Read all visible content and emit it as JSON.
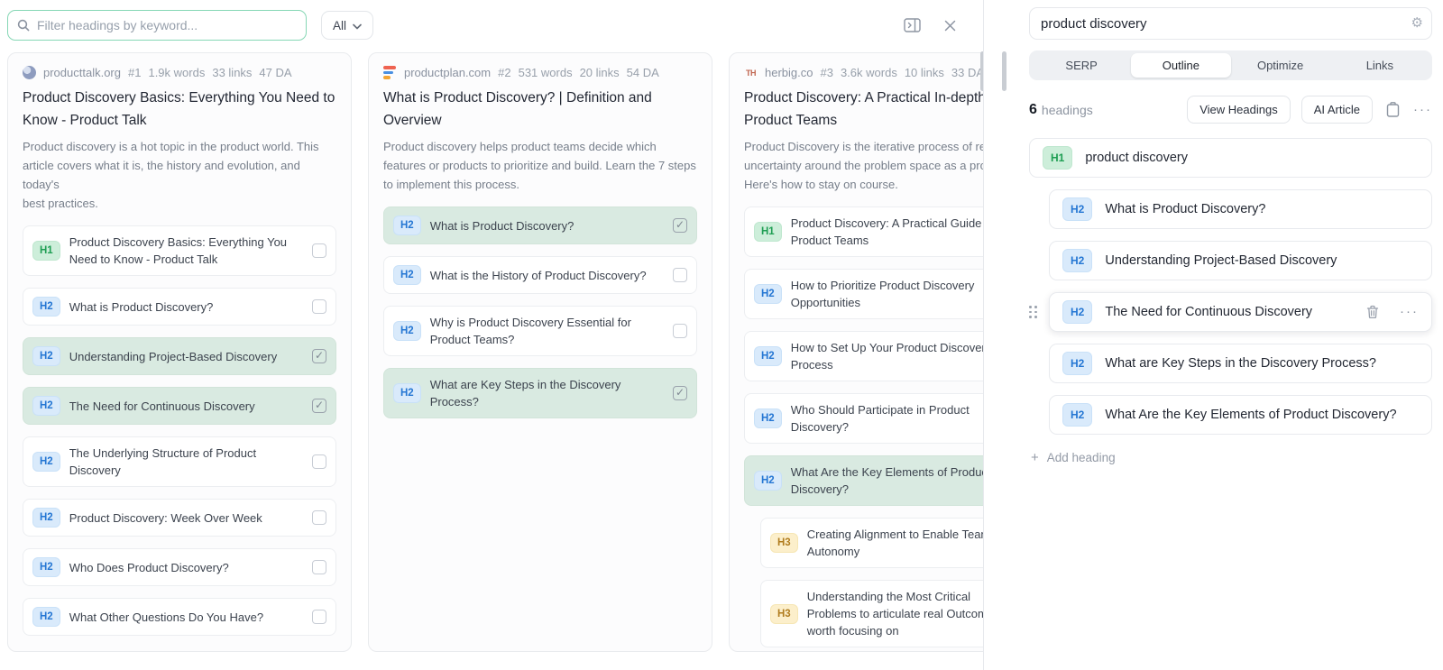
{
  "toolbar": {
    "filter_placeholder": "Filter headings by keyword...",
    "filter_dropdown": "All"
  },
  "columns": [
    {
      "favicon": "globe",
      "favicon_text": "",
      "domain": "producttalk.org",
      "rank": "#1",
      "words": "1.9k words",
      "links": "33 links",
      "da": "47 DA",
      "title": "Product Discovery Basics: Everything You Need to\nKnow - Product Talk",
      "description": "Product discovery is a hot topic in the product world. This\narticle covers what it is, the history and evolution, and today's\nbest practices.",
      "has_partial_item": false,
      "headings": [
        {
          "level": "H1",
          "text": "Product Discovery Basics: Everything You\nNeed to Know - Product Talk",
          "selected": false
        },
        {
          "level": "H2",
          "text": "What is Product Discovery?",
          "selected": false
        },
        {
          "level": "H2",
          "text": "Understanding Project-Based Discovery",
          "selected": true
        },
        {
          "level": "H2",
          "text": "The Need for Continuous Discovery",
          "selected": true
        },
        {
          "level": "H2",
          "text": "The Underlying Structure of Product\nDiscovery",
          "selected": false
        },
        {
          "level": "H2",
          "text": "Product Discovery: Week Over Week",
          "selected": false
        },
        {
          "level": "H2",
          "text": "Who Does Product Discovery?",
          "selected": false
        },
        {
          "level": "H2",
          "text": "What Other Questions Do You Have?",
          "selected": false
        }
      ]
    },
    {
      "favicon": "bars",
      "favicon_text": "",
      "domain": "productplan.com",
      "rank": "#2",
      "words": "531 words",
      "links": "20 links",
      "da": "54 DA",
      "title": "What is Product Discovery? | Definition and\nOverview",
      "description": "Product discovery helps product teams decide which\nfeatures or products to prioritize and build. Learn the 7 steps\nto implement this process.",
      "has_partial_item": false,
      "headings": [
        {
          "level": "H2",
          "text": "What is Product Discovery?",
          "selected": true
        },
        {
          "level": "H2",
          "text": "What is the History of Product Discovery?",
          "selected": false
        },
        {
          "level": "H2",
          "text": "Why is Product Discovery Essential for\nProduct Teams?",
          "selected": false
        },
        {
          "level": "H2",
          "text": "What are Key Steps in the Discovery\nProcess?",
          "selected": true
        }
      ]
    },
    {
      "favicon": "th",
      "favicon_text": "TH",
      "domain": "herbig.co",
      "rank": "#3",
      "words": "3.6k words",
      "links": "10 links",
      "da": "33 DA",
      "title": "Product Discovery: A Practical In-depth Guide for\nProduct Teams",
      "description": "Product Discovery is the iterative process of reducing\nuncertainty around the problem space as a product team.\nHere's how to stay on course.",
      "has_partial_item": true,
      "headings": [
        {
          "level": "H1",
          "text": "Product Discovery: A Practical Guide for\nProduct Teams",
          "selected": false
        },
        {
          "level": "H2",
          "text": "How to Prioritize Product Discovery\nOpportunities",
          "selected": false
        },
        {
          "level": "H2",
          "text": "How to Set Up Your Product Discovery\nProcess",
          "selected": false
        },
        {
          "level": "H2",
          "text": "Who Should Participate in Product\nDiscovery?",
          "selected": false
        },
        {
          "level": "H2",
          "text": "What Are the Key Elements of Product\nDiscovery?",
          "selected": true
        },
        {
          "level": "H3",
          "text": "Creating Alignment to Enable Team\nAutonomy",
          "selected": false,
          "indent": true
        },
        {
          "level": "H3",
          "text": "Understanding the Most Critical\nProblems to articulate real Outcomes\nworth focusing on",
          "selected": false,
          "indent": true
        }
      ]
    }
  ],
  "right_panel": {
    "query": "product discovery",
    "tabs": [
      "SERP",
      "Outline",
      "Optimize",
      "Links"
    ],
    "active_tab": "Outline",
    "headings_count": "6",
    "headings_label": "headings",
    "view_headings_label": "View Headings",
    "ai_article_label": "AI Article",
    "add_heading_label": "Add heading",
    "outline": [
      {
        "level": "H1",
        "text": "product discovery",
        "indent": false,
        "hovered": false
      },
      {
        "level": "H2",
        "text": "What is Product Discovery?",
        "indent": true,
        "hovered": false
      },
      {
        "level": "H2",
        "text": "Understanding Project-Based Discovery",
        "indent": true,
        "hovered": false
      },
      {
        "level": "H2",
        "text": "The Need for Continuous Discovery",
        "indent": true,
        "hovered": true
      },
      {
        "level": "H2",
        "text": "What are Key Steps in the Discovery Process?",
        "indent": true,
        "hovered": false
      },
      {
        "level": "H2",
        "text": "What Are the Key Elements of Product Discovery?",
        "indent": true,
        "hovered": false
      }
    ]
  }
}
